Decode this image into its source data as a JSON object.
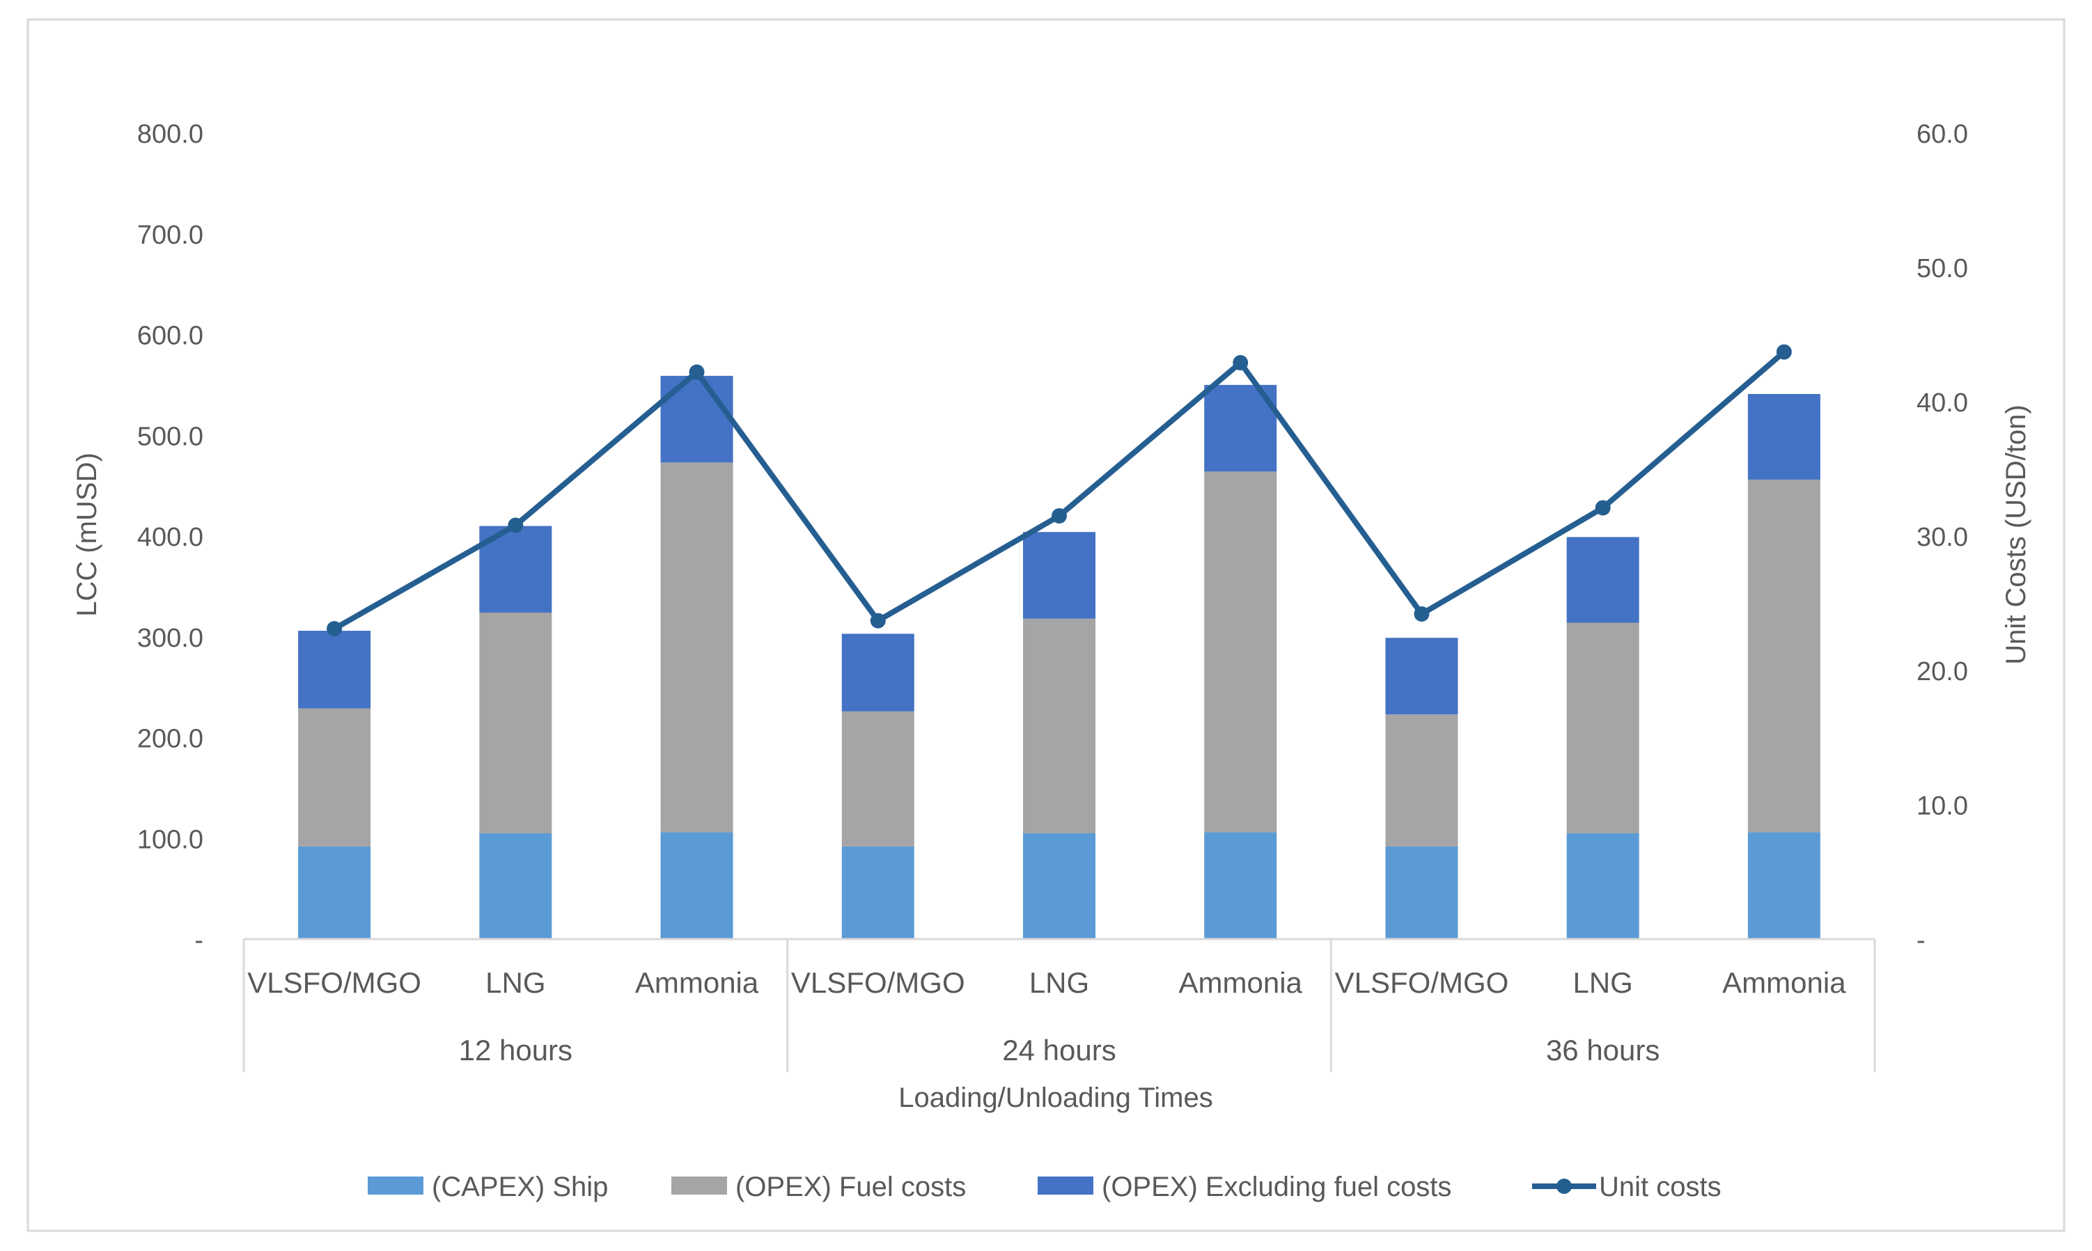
{
  "chart_data": {
    "type": "bar",
    "stacked": true,
    "title": "",
    "xlabel": "Loading/Unloading Times",
    "ylabel": "LCC (mUSD)",
    "y2label": "Unit Costs (USD/ton)",
    "ylim": [
      0,
      800
    ],
    "y2lim": [
      0,
      60
    ],
    "y_ticks": [
      "-",
      "100.0",
      "200.0",
      "300.0",
      "400.0",
      "500.0",
      "600.0",
      "700.0",
      "800.0"
    ],
    "y2_ticks": [
      "-",
      "10.0",
      "20.0",
      "30.0",
      "40.0",
      "50.0",
      "60.0"
    ],
    "groups": [
      "12 hours",
      "24 hours",
      "36 hours"
    ],
    "categories": [
      "VLSFO/MGO",
      "LNG",
      "Ammonia",
      "VLSFO/MGO",
      "LNG",
      "Ammonia",
      "VLSFO/MGO",
      "LNG",
      "Ammonia"
    ],
    "group_of_category": [
      0,
      0,
      0,
      1,
      1,
      1,
      2,
      2,
      2
    ],
    "series": [
      {
        "name": "(CAPEX) Ship",
        "kind": "bar",
        "axis": "left",
        "color": "#5b9bd5",
        "values": [
          92,
          105,
          106,
          92,
          105,
          106,
          92,
          105,
          106
        ]
      },
      {
        "name": "(OPEX) Fuel costs",
        "kind": "bar",
        "axis": "left",
        "color": "#a5a5a5",
        "values": [
          137,
          219,
          367,
          134,
          213,
          358,
          131,
          209,
          350
        ]
      },
      {
        "name": "(OPEX) Excluding fuel costs",
        "kind": "bar",
        "axis": "left",
        "color": "#4472c4",
        "values": [
          77,
          86,
          86,
          77,
          86,
          86,
          76,
          85,
          85
        ]
      },
      {
        "name": "Unit costs",
        "kind": "line",
        "axis": "right",
        "color": "#255e91",
        "values": [
          23.1,
          30.8,
          42.2,
          23.7,
          31.5,
          42.9,
          24.2,
          32.1,
          43.7
        ]
      }
    ],
    "legend_position": "bottom"
  }
}
